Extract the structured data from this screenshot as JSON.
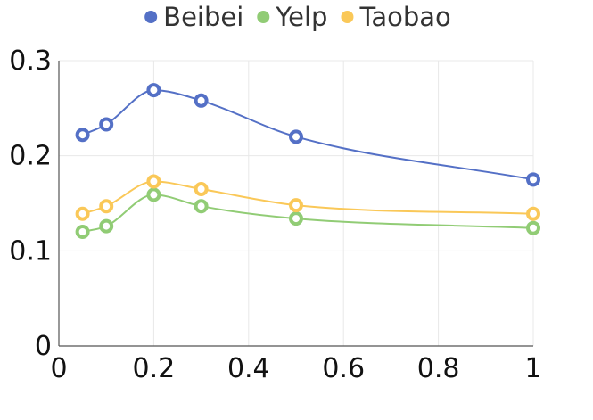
{
  "chart_data": {
    "type": "line",
    "x": [
      0.05,
      0.1,
      0.2,
      0.3,
      0.5,
      1
    ],
    "series": [
      {
        "name": "Beibei",
        "color": "#5470c6",
        "values": [
          0.222,
          0.233,
          0.269,
          0.258,
          0.22,
          0.175
        ]
      },
      {
        "name": "Yelp",
        "color": "#91cc75",
        "values": [
          0.12,
          0.126,
          0.159,
          0.147,
          0.134,
          0.124
        ]
      },
      {
        "name": "Taobao",
        "color": "#fac858",
        "values": [
          0.139,
          0.147,
          0.173,
          0.165,
          0.148,
          0.139
        ]
      }
    ],
    "xlim": [
      0,
      1
    ],
    "ylim": [
      0,
      0.3
    ],
    "xticks": [
      "0",
      "0.2",
      "0.4",
      "0.6",
      "0.8",
      "1"
    ],
    "yticks": [
      "0",
      "0.1",
      "0.2",
      "0.3"
    ],
    "grid": true,
    "legend_position": "top-center",
    "title": "",
    "xlabel": "",
    "ylabel": ""
  }
}
